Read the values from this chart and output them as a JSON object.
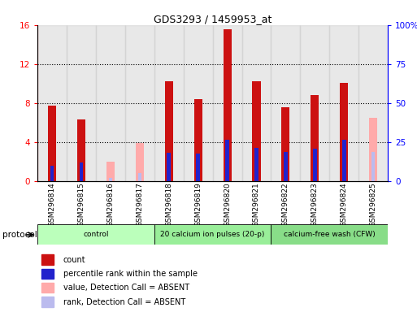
{
  "title": "GDS3293 / 1459953_at",
  "samples": [
    "GSM296814",
    "GSM296815",
    "GSM296816",
    "GSM296817",
    "GSM296818",
    "GSM296819",
    "GSM296820",
    "GSM296821",
    "GSM296822",
    "GSM296823",
    "GSM296824",
    "GSM296825"
  ],
  "count_values": [
    7.7,
    6.3,
    0,
    0,
    10.2,
    8.4,
    15.6,
    10.2,
    7.6,
    8.8,
    10.1,
    0
  ],
  "rank_values": [
    1.6,
    1.9,
    0,
    0,
    2.9,
    2.8,
    4.2,
    3.4,
    3.0,
    3.3,
    4.2,
    0
  ],
  "absent_count": [
    0,
    0,
    2.0,
    3.9,
    0,
    0,
    0,
    0,
    0,
    0,
    0,
    6.5
  ],
  "absent_rank": [
    0,
    0,
    0.3,
    0.8,
    0,
    0,
    0,
    0,
    0,
    0,
    0,
    3.0
  ],
  "ylim_left": [
    0,
    16
  ],
  "ylim_right": [
    0,
    100
  ],
  "yticks_left": [
    0,
    4,
    8,
    12,
    16
  ],
  "yticks_right": [
    0,
    25,
    50,
    75,
    100
  ],
  "protocols": [
    {
      "label": "control",
      "start": 0,
      "end": 4,
      "color": "#bbffbb"
    },
    {
      "label": "20 calcium ion pulses (20-p)",
      "start": 4,
      "end": 8,
      "color": "#99ee99"
    },
    {
      "label": "calcium-free wash (CFW)",
      "start": 8,
      "end": 12,
      "color": "#88dd88"
    }
  ],
  "protocol_label": "protocol",
  "count_color": "#cc1111",
  "rank_color": "#2222cc",
  "absent_count_color": "#ffaaaa",
  "absent_rank_color": "#bbbbee",
  "bg_color_even": "#cccccc",
  "bg_color_odd": "#bbbbbb",
  "legend_items": [
    {
      "color": "#cc1111",
      "label": "count"
    },
    {
      "color": "#2222cc",
      "label": "percentile rank within the sample"
    },
    {
      "color": "#ffaaaa",
      "label": "value, Detection Call = ABSENT"
    },
    {
      "color": "#bbbbee",
      "label": "rank, Detection Call = ABSENT"
    }
  ]
}
